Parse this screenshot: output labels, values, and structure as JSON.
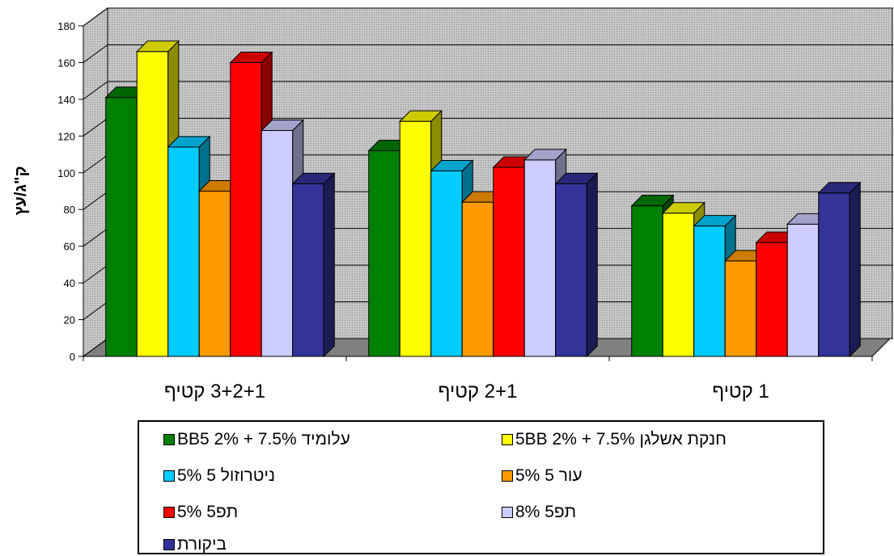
{
  "chart_data": {
    "type": "bar",
    "style": "3d-clustered-column",
    "ylabel": "ק\"ג/עץ",
    "xlabel": "",
    "ylim": [
      0,
      180
    ],
    "yticks": [
      0,
      20,
      40,
      60,
      80,
      100,
      120,
      140,
      160,
      180
    ],
    "grid": true,
    "legend_position": "bottom",
    "categories": [
      "3+2+1 קטיף",
      "2+1 קטיף",
      "1 קטיף"
    ],
    "series": [
      {
        "name": "עלומיד 7.5% + 2% BB5",
        "legend_label": "BB5 2% + 7.5% עלומיד",
        "color": "#008000",
        "values": [
          141,
          112,
          82
        ]
      },
      {
        "name": "חנקת אשלגן 7.5% + 2% 5BB",
        "legend_label": "5BB 2% + 7.5% חנקת אשלגן",
        "color": "#FFFF00",
        "values": [
          166,
          128,
          78
        ]
      },
      {
        "name": "ניטרוזול 5 5%",
        "legend_label": "5% ניטרוזול 5",
        "color": "#00CCFF",
        "values": [
          114,
          101,
          71
        ]
      },
      {
        "name": "עור 5 5%",
        "legend_label": "5% עור 5",
        "color": "#FF9900",
        "values": [
          90,
          84,
          52
        ]
      },
      {
        "name": "תפ5 5%",
        "legend_label": "5% תפ5",
        "color": "#FF0000",
        "values": [
          160,
          103,
          62
        ]
      },
      {
        "name": "תפ5 8%",
        "legend_label": "8% תפ5",
        "color": "#CCCCFF",
        "values": [
          123,
          107,
          72
        ]
      },
      {
        "name": "ביקורת",
        "legend_label": "ביקורת",
        "color": "#333399",
        "values": [
          94,
          94,
          89
        ]
      }
    ]
  }
}
